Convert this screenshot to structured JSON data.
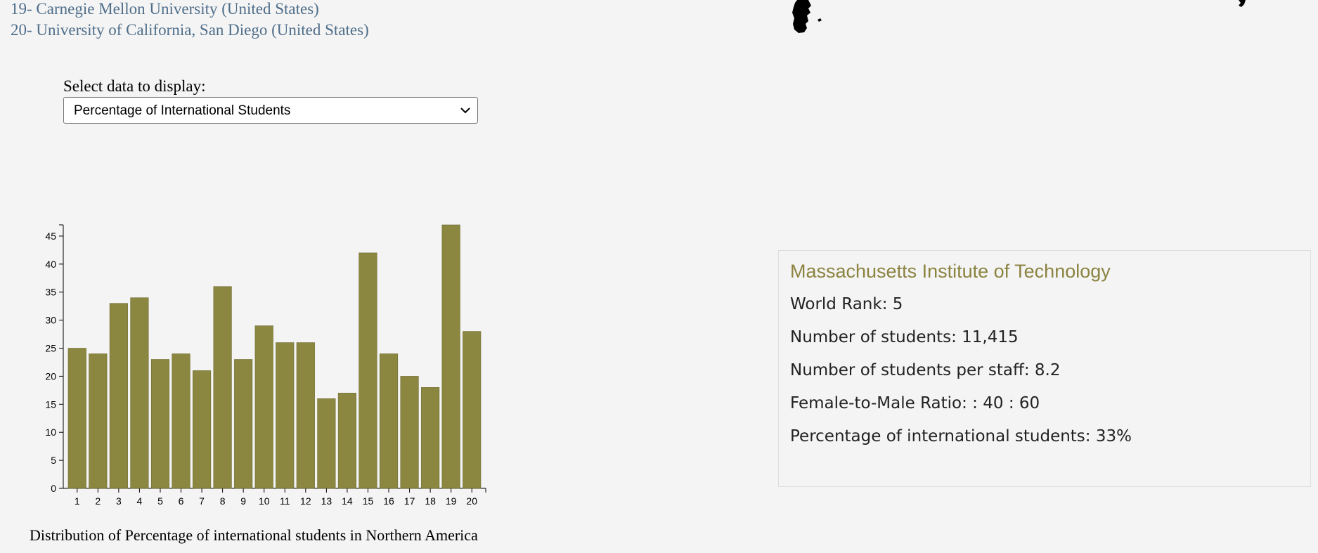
{
  "ranking_list": {
    "items": [
      {
        "rank": "19-",
        "name": "Carnegie Mellon University (United States)"
      },
      {
        "rank": "20-",
        "name": "University of California, San Diego (United States)"
      }
    ],
    "text_color": "#4f6e8a"
  },
  "data_select": {
    "label": "Select data to display:",
    "selected": "Percentage of International Students"
  },
  "chart_data": {
    "type": "bar",
    "categories": [
      "1",
      "2",
      "3",
      "4",
      "5",
      "6",
      "7",
      "8",
      "9",
      "10",
      "11",
      "12",
      "13",
      "14",
      "15",
      "16",
      "17",
      "18",
      "19",
      "20"
    ],
    "values": [
      25,
      24,
      33,
      34,
      23,
      24,
      21,
      36,
      23,
      29,
      26,
      26,
      16,
      17,
      42,
      24,
      20,
      18,
      47,
      28
    ],
    "ylim": [
      0,
      47
    ],
    "yticks": [
      0,
      5,
      10,
      15,
      20,
      25,
      30,
      35,
      40,
      45
    ],
    "title": "Distribution of Percentage of international students in Northern America",
    "xlabel": "",
    "ylabel": "",
    "bar_color": "#8b8740",
    "grid": false,
    "legend": "none"
  },
  "info_card": {
    "title": "Massachusetts Institute of Technology",
    "title_color": "#8b8340",
    "rows": [
      "World Rank: 5",
      "Number of students: 11,415",
      "Number of students per staff: 8.2",
      "Female-to-Male Ratio: : 40 : 60",
      "Percentage of international students: 33%"
    ]
  },
  "icons": {
    "select_chevron": "chevron-down-icon"
  }
}
